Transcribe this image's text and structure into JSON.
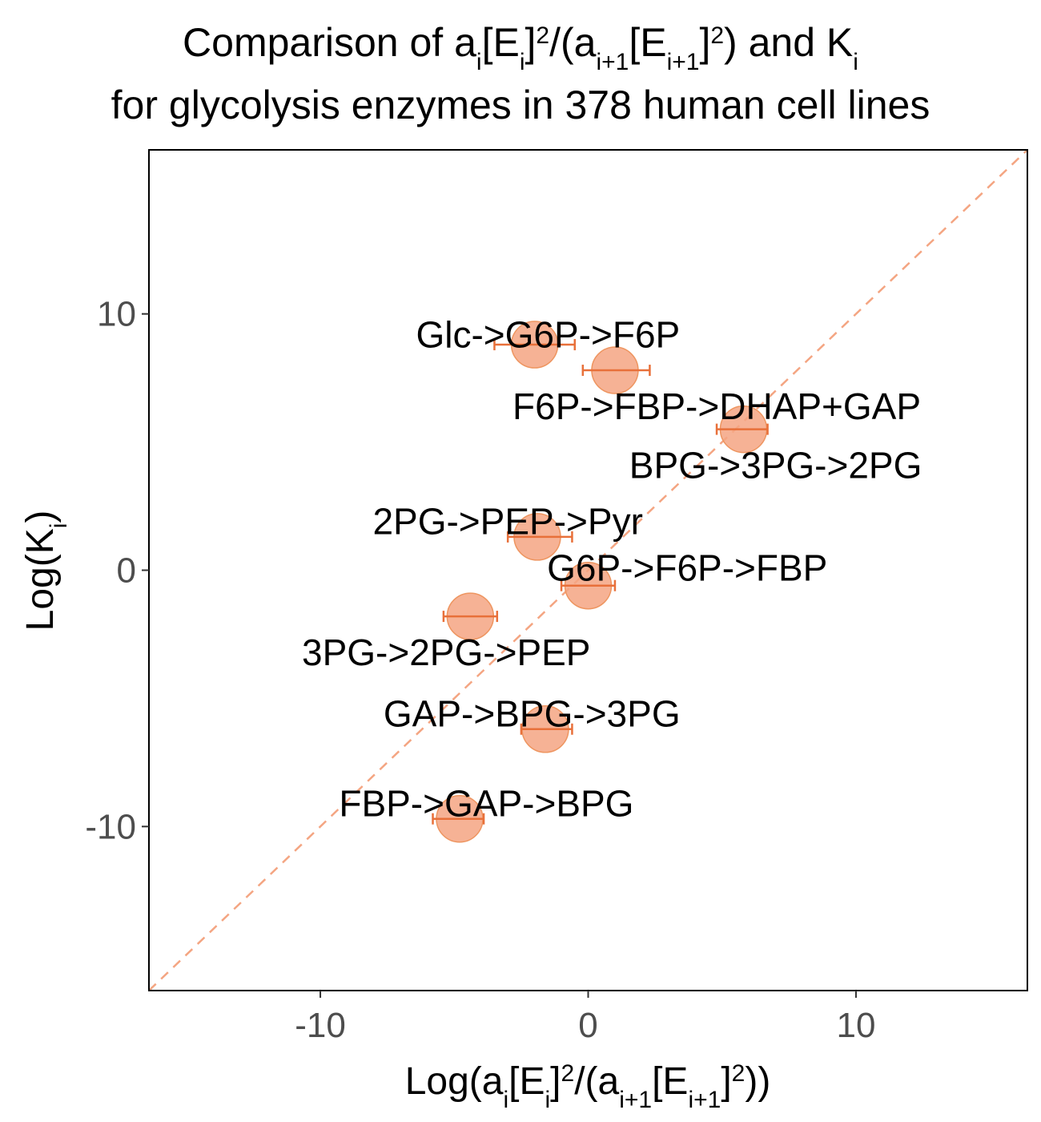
{
  "chart_data": {
    "type": "scatter",
    "title": {
      "line1": {
        "pre": "Comparison of a",
        "sub_i": "i",
        "br1": "[E",
        "sub_i2": "i",
        "br2": "]",
        "sup2": "2",
        "slash": "/(a",
        "sub_ip1": "i+1",
        "br3": "[E",
        "sub_ip1b": "i+1",
        "br4": "]",
        "sup2b": "2",
        "post": ") and K",
        "sub_k": "i"
      },
      "line2": "for glycolysis enzymes in 378 human cell lines"
    },
    "xlabel": {
      "pre": "Log(a",
      "sub_i": "i",
      "br1": "[E",
      "sub_i2": "i",
      "br2": "]",
      "sup2": "2",
      "slash": "/(a",
      "sub_ip1": "i+1",
      "br3": "[E",
      "sub_ip1b": "i+1",
      "br4": "]",
      "sup2b": "2",
      "post": "))"
    },
    "ylabel": {
      "pre": "Log(K",
      "sub": "i",
      "post": ")"
    },
    "xlim": [
      -16.4,
      16.4
    ],
    "ylim": [
      -16.4,
      16.4
    ],
    "xticks": [
      -10,
      0,
      10
    ],
    "yticks": [
      -10,
      0,
      10
    ],
    "xtick_labels": [
      "-10",
      "0",
      "10"
    ],
    "ytick_labels": [
      "-10",
      "0",
      "10"
    ],
    "reference_line": "y = x",
    "grid": false,
    "colors": {
      "point": "#F4A582",
      "point_stroke": "#EE9560",
      "errorbar": "#E8703A",
      "diagonal": "#F4A582"
    },
    "points": [
      {
        "label": "Glc->G6P->F6P",
        "x": -2.0,
        "y": 8.8,
        "xmin": -3.5,
        "xmax": -0.5,
        "label_x": -1.5,
        "label_y": 9.2
      },
      {
        "label": "F6P->FBP->DHAP+GAP",
        "x": 1.0,
        "y": 7.8,
        "xmin": -0.2,
        "xmax": 2.3,
        "label_x": 4.8,
        "label_y": 6.4
      },
      {
        "label": "BPG->3PG->2PG",
        "x": 5.8,
        "y": 5.5,
        "xmin": 4.8,
        "xmax": 6.7,
        "label_x": 7.0,
        "label_y": 4.1
      },
      {
        "label": "2PG->PEP->Pyr",
        "x": -1.9,
        "y": 1.3,
        "xmin": -3.0,
        "xmax": -0.6,
        "label_x": -3.0,
        "label_y": 1.9
      },
      {
        "label": "G6P->F6P->FBP",
        "x": 0.0,
        "y": -0.6,
        "xmin": -1.0,
        "xmax": 1.0,
        "label_x": 3.7,
        "label_y": 0.1
      },
      {
        "label": "3PG->2PG->PEP",
        "x": -4.4,
        "y": -1.8,
        "xmin": -5.4,
        "xmax": -3.4,
        "label_x": -5.3,
        "label_y": -3.2
      },
      {
        "label": "GAP->BPG->3PG",
        "x": -1.6,
        "y": -6.2,
        "xmin": -2.5,
        "xmax": -0.6,
        "label_x": -2.1,
        "label_y": -5.6
      },
      {
        "label": "FBP->GAP->BPG",
        "x": -4.8,
        "y": -9.7,
        "xmin": -5.8,
        "xmax": -3.9,
        "label_x": -3.8,
        "label_y": -9.1
      }
    ]
  }
}
